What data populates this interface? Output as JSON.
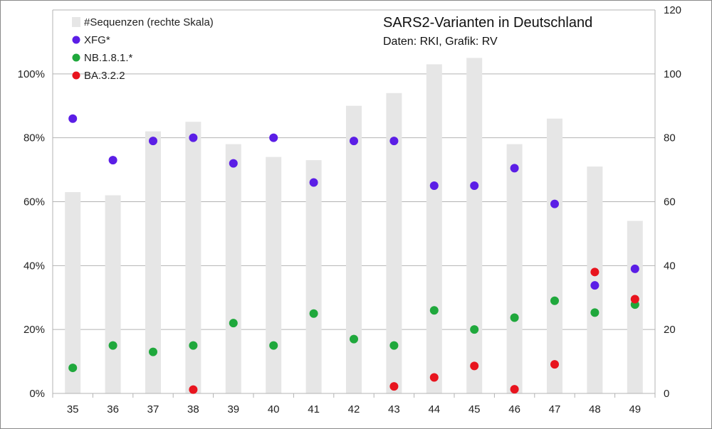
{
  "chart_data": {
    "type": "bar+scatter",
    "title": "SARS2-Varianten in Deutschland",
    "subtitle": "Daten: RKI, Grafik: RV",
    "categories": [
      "35",
      "36",
      "37",
      "38",
      "39",
      "40",
      "41",
      "42",
      "43",
      "44",
      "45",
      "46",
      "47",
      "48",
      "49"
    ],
    "bars": {
      "name": "#Sequenzen (rechte Skala)",
      "color": "#e6e6e6",
      "values": [
        63,
        62,
        82,
        85,
        78,
        74,
        73,
        90,
        94,
        103,
        105,
        78,
        86,
        71,
        54
      ]
    },
    "series": [
      {
        "name": "XFG*",
        "color": "#5b1ee6",
        "values": [
          86,
          73,
          79,
          80,
          72,
          80,
          66,
          79,
          79,
          65,
          65,
          70.5,
          59.3,
          33.8,
          39
        ]
      },
      {
        "name": "NB.1.8.1.*",
        "color": "#1fa83c",
        "values": [
          8,
          15,
          13,
          15,
          22,
          15,
          25,
          17,
          15,
          26,
          20,
          23.7,
          29,
          25.3,
          27.8
        ]
      },
      {
        "name": "BA.3.2.2",
        "color": "#e8141e",
        "values": [
          null,
          null,
          null,
          1.2,
          null,
          null,
          null,
          null,
          2.2,
          5,
          8.6,
          1.3,
          9.1,
          38,
          29.5
        ]
      }
    ],
    "y_left": {
      "min": 0,
      "max": 120,
      "ticks": [
        0,
        20,
        40,
        60,
        80,
        100
      ],
      "tick_labels": [
        "0%",
        "20%",
        "40%",
        "60%",
        "80%",
        "100%"
      ]
    },
    "y_right": {
      "min": 0,
      "max": 120,
      "ticks": [
        0,
        20,
        40,
        60,
        80,
        100,
        120
      ],
      "tick_labels": [
        "0",
        "20",
        "40",
        "60",
        "80",
        "100",
        "120"
      ]
    },
    "grid": true,
    "legend_position": "top-left"
  }
}
